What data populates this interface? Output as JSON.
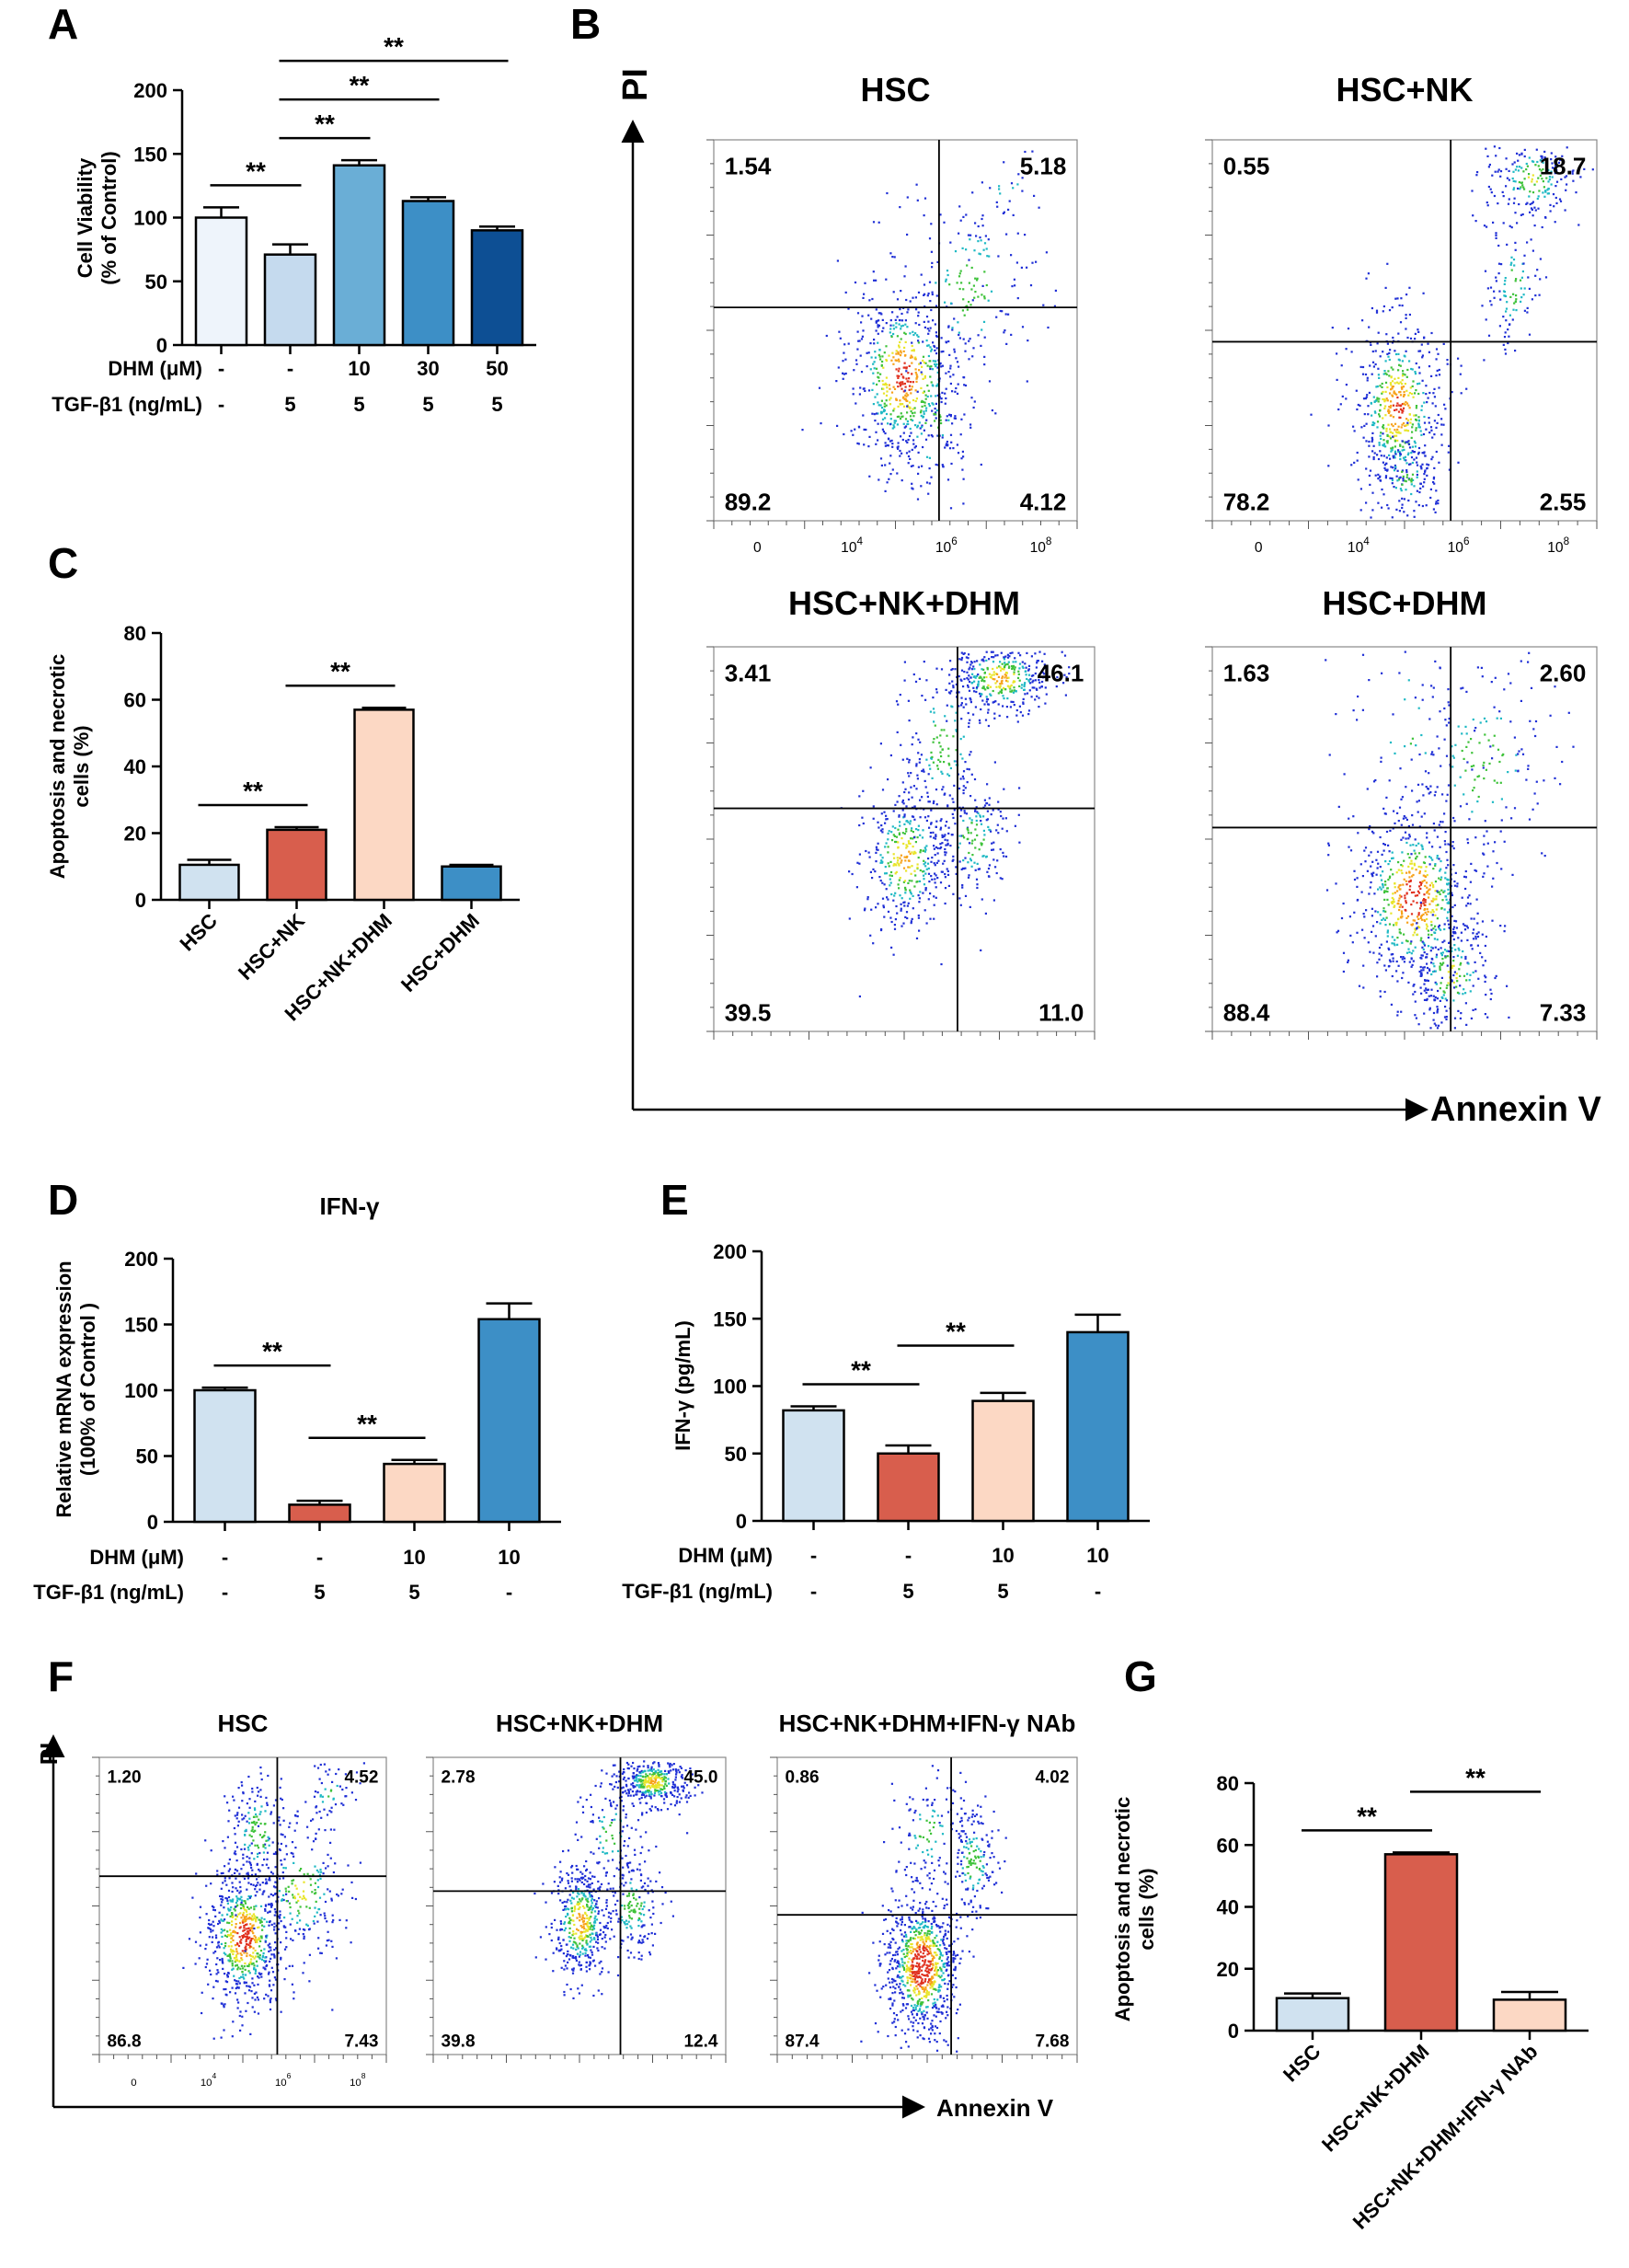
{
  "colors": {
    "light_blue": "#d0e2f0",
    "pale_blue": "#eef4fb",
    "mid_blue": "#c5daee",
    "sky_blue": "#6aaed6",
    "blue": "#3d8fc6",
    "dark_blue": "#0d4f94",
    "red": "#d85e4d",
    "peach": "#fcd8c4",
    "black": "#000000"
  },
  "sig": "**",
  "chart_data": [
    {
      "panel": "A",
      "type": "bar",
      "ylabel": "Cell Viability (% of Control)",
      "ylabel_lines": [
        "Cell Viability",
        "(% of Control)"
      ],
      "ylim": [
        0,
        200
      ],
      "yticks": [
        0,
        50,
        100,
        150,
        200
      ],
      "values": [
        100,
        71,
        141,
        113,
        90
      ],
      "errors": [
        8,
        8,
        4,
        3,
        3
      ],
      "colors": [
        "pale_blue",
        "mid_blue",
        "sky_blue",
        "blue",
        "dark_blue"
      ],
      "rows": [
        {
          "label": "DHM (μM)",
          "values": [
            "-",
            "-",
            "10",
            "30",
            "50"
          ]
        },
        {
          "label": "TGF-β1 (ng/mL)",
          "values": [
            "-",
            "5",
            "5",
            "5",
            "5"
          ]
        }
      ],
      "significance": [
        {
          "from": 0,
          "to": 1,
          "text": "**"
        },
        {
          "from": 1,
          "to": 2,
          "text": "**"
        },
        {
          "from": 1,
          "to": 3,
          "text": "**"
        },
        {
          "from": 1,
          "to": 4,
          "text": "**"
        }
      ]
    },
    {
      "panel": "C",
      "type": "bar",
      "ylabel": "Apoptosis and necrotic cells (%)",
      "ylabel_lines": [
        "Apoptosis and necrotic",
        "cells (%)"
      ],
      "ylim": [
        0,
        80
      ],
      "yticks": [
        0,
        20,
        40,
        60,
        80
      ],
      "categories": [
        "HSC",
        "HSC+NK",
        "HSC+NK+DHM",
        "HSC+DHM"
      ],
      "values": [
        10.5,
        21,
        57,
        10
      ],
      "errors": [
        1.5,
        0.8,
        0.6,
        0.5
      ],
      "colors": [
        "light_blue",
        "red",
        "peach",
        "blue"
      ],
      "significance": [
        {
          "from": 0,
          "to": 1,
          "text": "**"
        },
        {
          "from": 1,
          "to": 2,
          "text": "**"
        }
      ]
    },
    {
      "panel": "D",
      "type": "bar",
      "title": "IFN-γ",
      "ylabel": "Relative mRNA expression (100% of Control)",
      "ylabel_lines": [
        "Relative mRNA expression",
        "(100% of Control )"
      ],
      "ylim": [
        0,
        200
      ],
      "yticks": [
        0,
        50,
        100,
        150,
        200
      ],
      "values": [
        100,
        13,
        44,
        154
      ],
      "errors": [
        2,
        3,
        3,
        12
      ],
      "colors": [
        "light_blue",
        "red",
        "peach",
        "blue"
      ],
      "rows": [
        {
          "label": "DHM (μM)",
          "values": [
            "-",
            "-",
            "10",
            "10"
          ]
        },
        {
          "label": "TGF-β1 (ng/mL)",
          "values": [
            "-",
            "5",
            "5",
            "-"
          ]
        }
      ],
      "significance": [
        {
          "from": 0,
          "to": 1,
          "text": "**"
        },
        {
          "from": 1,
          "to": 2,
          "text": "**"
        }
      ]
    },
    {
      "panel": "E",
      "type": "bar",
      "ylabel": "IFN-γ (pg/mL)",
      "ylabel_lines": [
        "IFN-γ (pg/mL)"
      ],
      "ylim": [
        0,
        200
      ],
      "yticks": [
        0,
        50,
        100,
        150,
        200
      ],
      "values": [
        82,
        50,
        89,
        140
      ],
      "errors": [
        3,
        6,
        6,
        13
      ],
      "colors": [
        "light_blue",
        "red",
        "peach",
        "blue"
      ],
      "rows": [
        {
          "label": "DHM (μM)",
          "values": [
            "-",
            "-",
            "10",
            "10"
          ]
        },
        {
          "label": "TGF-β1 (ng/mL)",
          "values": [
            "-",
            "5",
            "5",
            "-"
          ]
        }
      ],
      "significance": [
        {
          "from": 0,
          "to": 1,
          "text": "**"
        },
        {
          "from": 1,
          "to": 2,
          "text": "**"
        }
      ]
    },
    {
      "panel": "G",
      "type": "bar",
      "ylabel": "Apoptosis and necrotic cells (%)",
      "ylabel_lines": [
        "Apoptosis and necrotic",
        "cells (%)"
      ],
      "ylim": [
        0,
        80
      ],
      "yticks": [
        0,
        20,
        40,
        60,
        80
      ],
      "categories": [
        "HSC",
        "HSC+NK+DHM",
        "HSC+NK+DHM+IFN-γ NAb"
      ],
      "values": [
        10.5,
        57,
        10
      ],
      "errors": [
        1.5,
        0.6,
        2.5
      ],
      "colors": [
        "light_blue",
        "red",
        "peach"
      ],
      "significance": [
        {
          "from": 0,
          "to": 1,
          "text": "**"
        },
        {
          "from": 1,
          "to": 2,
          "text": "**"
        }
      ]
    },
    {
      "panel": "B",
      "type": "scatter",
      "xlabel": "Annexin V",
      "ylabel": "PI",
      "xticks": [
        "0",
        "10",
        "10",
        "10"
      ],
      "xtick_exponents": [
        "",
        "4",
        "6",
        "8"
      ],
      "plots": [
        {
          "title": "HSC",
          "quadrants": [
            "1.54",
            "5.18",
            "89.2",
            "4.12"
          ],
          "gate": [
            0.62,
            0.44
          ],
          "clusters": [
            [
              0.52,
              0.62,
              0.08,
              0.12,
              0.55
            ],
            [
              0.7,
              0.38,
              0.1,
              0.14,
              0.15
            ],
            [
              0.8,
              0.12,
              0.05,
              0.05,
              0.02
            ],
            [
              0.6,
              0.75,
              0.06,
              0.1,
              0.08
            ]
          ]
        },
        {
          "title": "HSC+NK",
          "quadrants": [
            "0.55",
            "18.7",
            "78.2",
            "2.55"
          ],
          "gate": [
            0.62,
            0.53
          ],
          "clusters": [
            [
              0.48,
              0.7,
              0.06,
              0.12,
              0.5
            ],
            [
              0.5,
              0.88,
              0.04,
              0.06,
              0.1
            ],
            [
              0.83,
              0.1,
              0.06,
              0.06,
              0.18
            ],
            [
              0.78,
              0.38,
              0.04,
              0.1,
              0.1
            ]
          ]
        },
        {
          "title": "HSC+NK+DHM",
          "quadrants": [
            "3.41",
            "46.1",
            "39.5",
            "11.0"
          ],
          "gate": [
            0.64,
            0.42
          ],
          "clusters": [
            [
              0.5,
              0.55,
              0.06,
              0.1,
              0.35
            ],
            [
              0.68,
              0.5,
              0.05,
              0.08,
              0.15
            ],
            [
              0.75,
              0.08,
              0.07,
              0.05,
              0.35
            ],
            [
              0.6,
              0.25,
              0.06,
              0.12,
              0.15
            ]
          ]
        },
        {
          "title": "HSC+DHM",
          "quadrants": [
            "1.63",
            "2.60",
            "88.4",
            "7.33"
          ],
          "gate": [
            0.62,
            0.47
          ],
          "clusters": [
            [
              0.52,
              0.65,
              0.08,
              0.12,
              0.6
            ],
            [
              0.62,
              0.85,
              0.06,
              0.08,
              0.2
            ],
            [
              0.7,
              0.3,
              0.1,
              0.15,
              0.15
            ],
            [
              0.5,
              0.2,
              0.1,
              0.15,
              0.05
            ]
          ]
        }
      ]
    },
    {
      "panel": "F",
      "type": "scatter",
      "xlabel": "Annexin V",
      "ylabel": "PI",
      "xticks": [
        "0",
        "10",
        "10",
        "10"
      ],
      "xtick_exponents": [
        "",
        "4",
        "6",
        "8"
      ],
      "plots": [
        {
          "title": "HSC",
          "quadrants": [
            "1.20",
            "4.52",
            "86.8",
            "7.43"
          ],
          "gate": [
            0.62,
            0.4
          ],
          "clusters": [
            [
              0.5,
              0.6,
              0.07,
              0.12,
              0.6
            ],
            [
              0.7,
              0.45,
              0.09,
              0.12,
              0.2
            ],
            [
              0.8,
              0.12,
              0.05,
              0.05,
              0.05
            ],
            [
              0.55,
              0.25,
              0.06,
              0.1,
              0.15
            ]
          ]
        },
        {
          "title": "HSC+NK+DHM",
          "quadrants": [
            "2.78",
            "45.0",
            "39.8",
            "12.4"
          ],
          "gate": [
            0.64,
            0.45
          ],
          "clusters": [
            [
              0.5,
              0.55,
              0.05,
              0.1,
              0.4
            ],
            [
              0.75,
              0.08,
              0.06,
              0.04,
              0.35
            ],
            [
              0.68,
              0.5,
              0.05,
              0.09,
              0.15
            ],
            [
              0.6,
              0.25,
              0.05,
              0.1,
              0.1
            ]
          ]
        },
        {
          "title": "HSC+NK+DHM+IFN-γ NAb",
          "quadrants": [
            "0.86",
            "4.02",
            "87.4",
            "7.68"
          ],
          "gate": [
            0.58,
            0.53
          ],
          "clusters": [
            [
              0.48,
              0.7,
              0.06,
              0.12,
              0.75
            ],
            [
              0.65,
              0.35,
              0.04,
              0.1,
              0.15
            ],
            [
              0.5,
              0.25,
              0.06,
              0.1,
              0.1
            ]
          ]
        }
      ]
    }
  ],
  "panels": {
    "A": {
      "letter": "A"
    },
    "B": {
      "letter": "B"
    },
    "C": {
      "letter": "C"
    },
    "D": {
      "letter": "D"
    },
    "E": {
      "letter": "E"
    },
    "F": {
      "letter": "F"
    },
    "G": {
      "letter": "G"
    }
  }
}
